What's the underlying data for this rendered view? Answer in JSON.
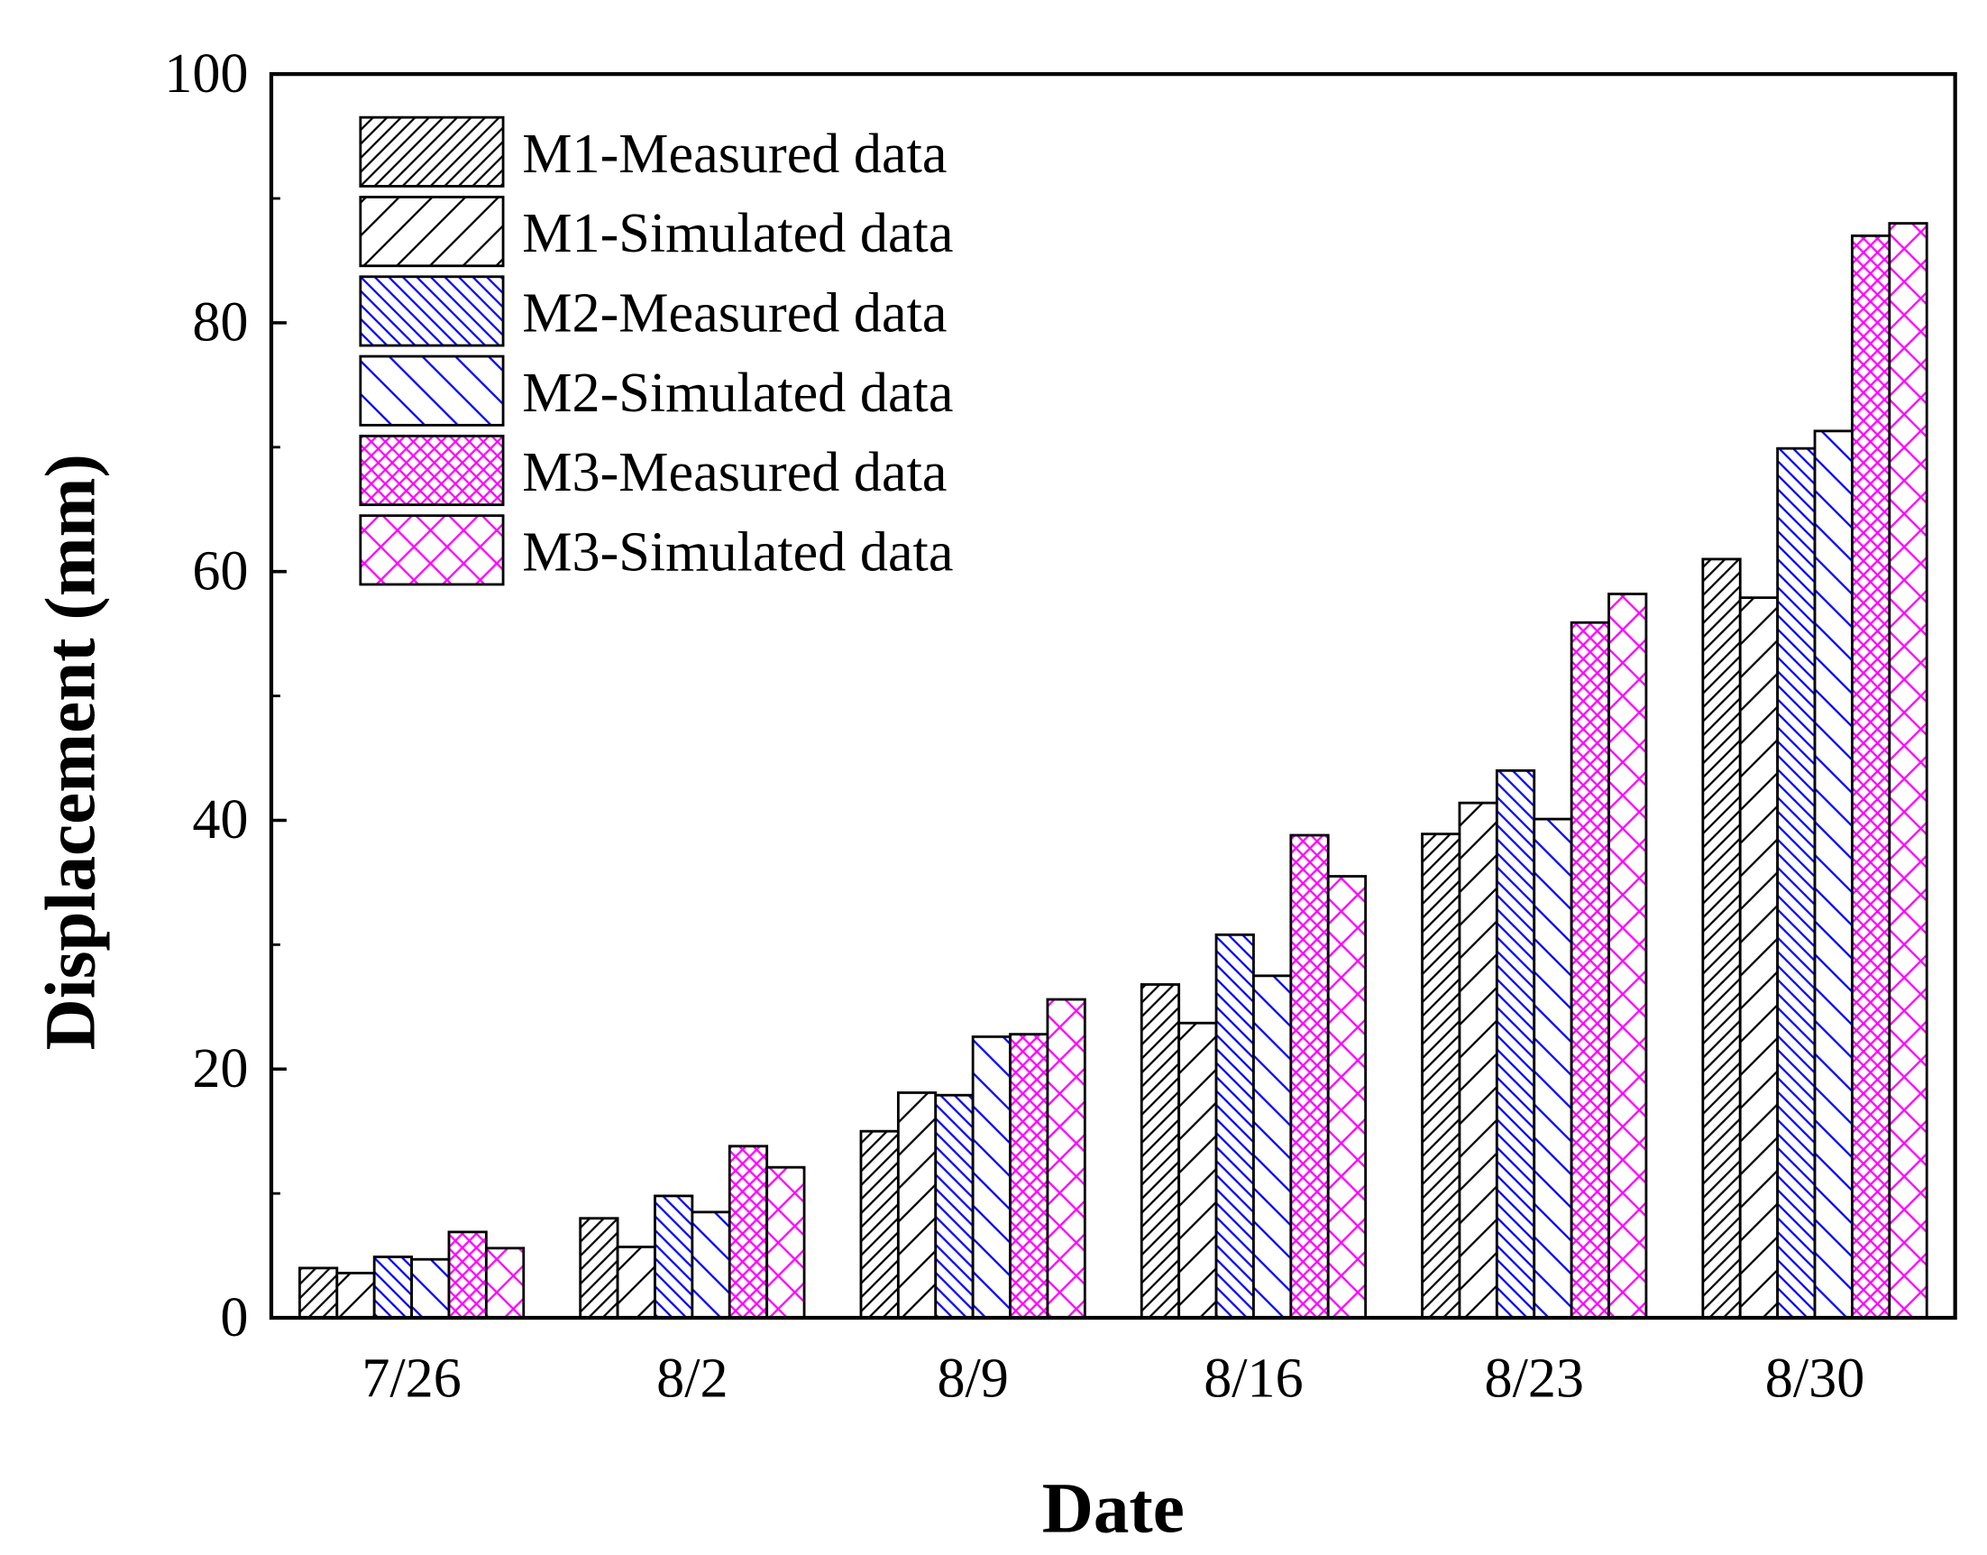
{
  "chart_data": {
    "type": "bar",
    "title": "",
    "xlabel": "Date",
    "ylabel": "Displacement (mm)",
    "ylim": [
      0,
      100
    ],
    "yticks": [
      "0",
      "20",
      "40",
      "60",
      "80",
      "100"
    ],
    "categories": [
      "7/26",
      "8/2",
      "8/9",
      "8/16",
      "8/23",
      "8/30"
    ],
    "legend_position": "top-left",
    "grid": false,
    "series": [
      {
        "name": "M1-Measured data",
        "color": "#000000",
        "pattern": "dense-forward-diagonal",
        "values": [
          4,
          8,
          15,
          26.8,
          38.9,
          61
        ]
      },
      {
        "name": "M1-Simulated data",
        "color": "#000000",
        "pattern": "sparse-forward-diagonal",
        "values": [
          3.6,
          5.7,
          18.1,
          23.7,
          41.4,
          57.9
        ]
      },
      {
        "name": "M2-Measured data",
        "color": "#0000ff",
        "pattern": "dense-back-diagonal",
        "values": [
          4.9,
          9.8,
          17.9,
          30.8,
          44,
          69.9
        ]
      },
      {
        "name": "M2-Simulated data",
        "color": "#0000ff",
        "pattern": "sparse-back-diagonal",
        "values": [
          4.7,
          8.5,
          22.6,
          27.5,
          40.1,
          71.3
        ]
      },
      {
        "name": "M3-Measured data",
        "color": "#ff00ff",
        "pattern": "dense-crosshatch",
        "values": [
          6.9,
          13.8,
          22.8,
          38.8,
          55.9,
          87
        ]
      },
      {
        "name": "M3-Simulated data",
        "color": "#ff00ff",
        "pattern": "sparse-crosshatch",
        "values": [
          5.6,
          12.1,
          25.6,
          35.5,
          58.2,
          88
        ]
      }
    ]
  }
}
